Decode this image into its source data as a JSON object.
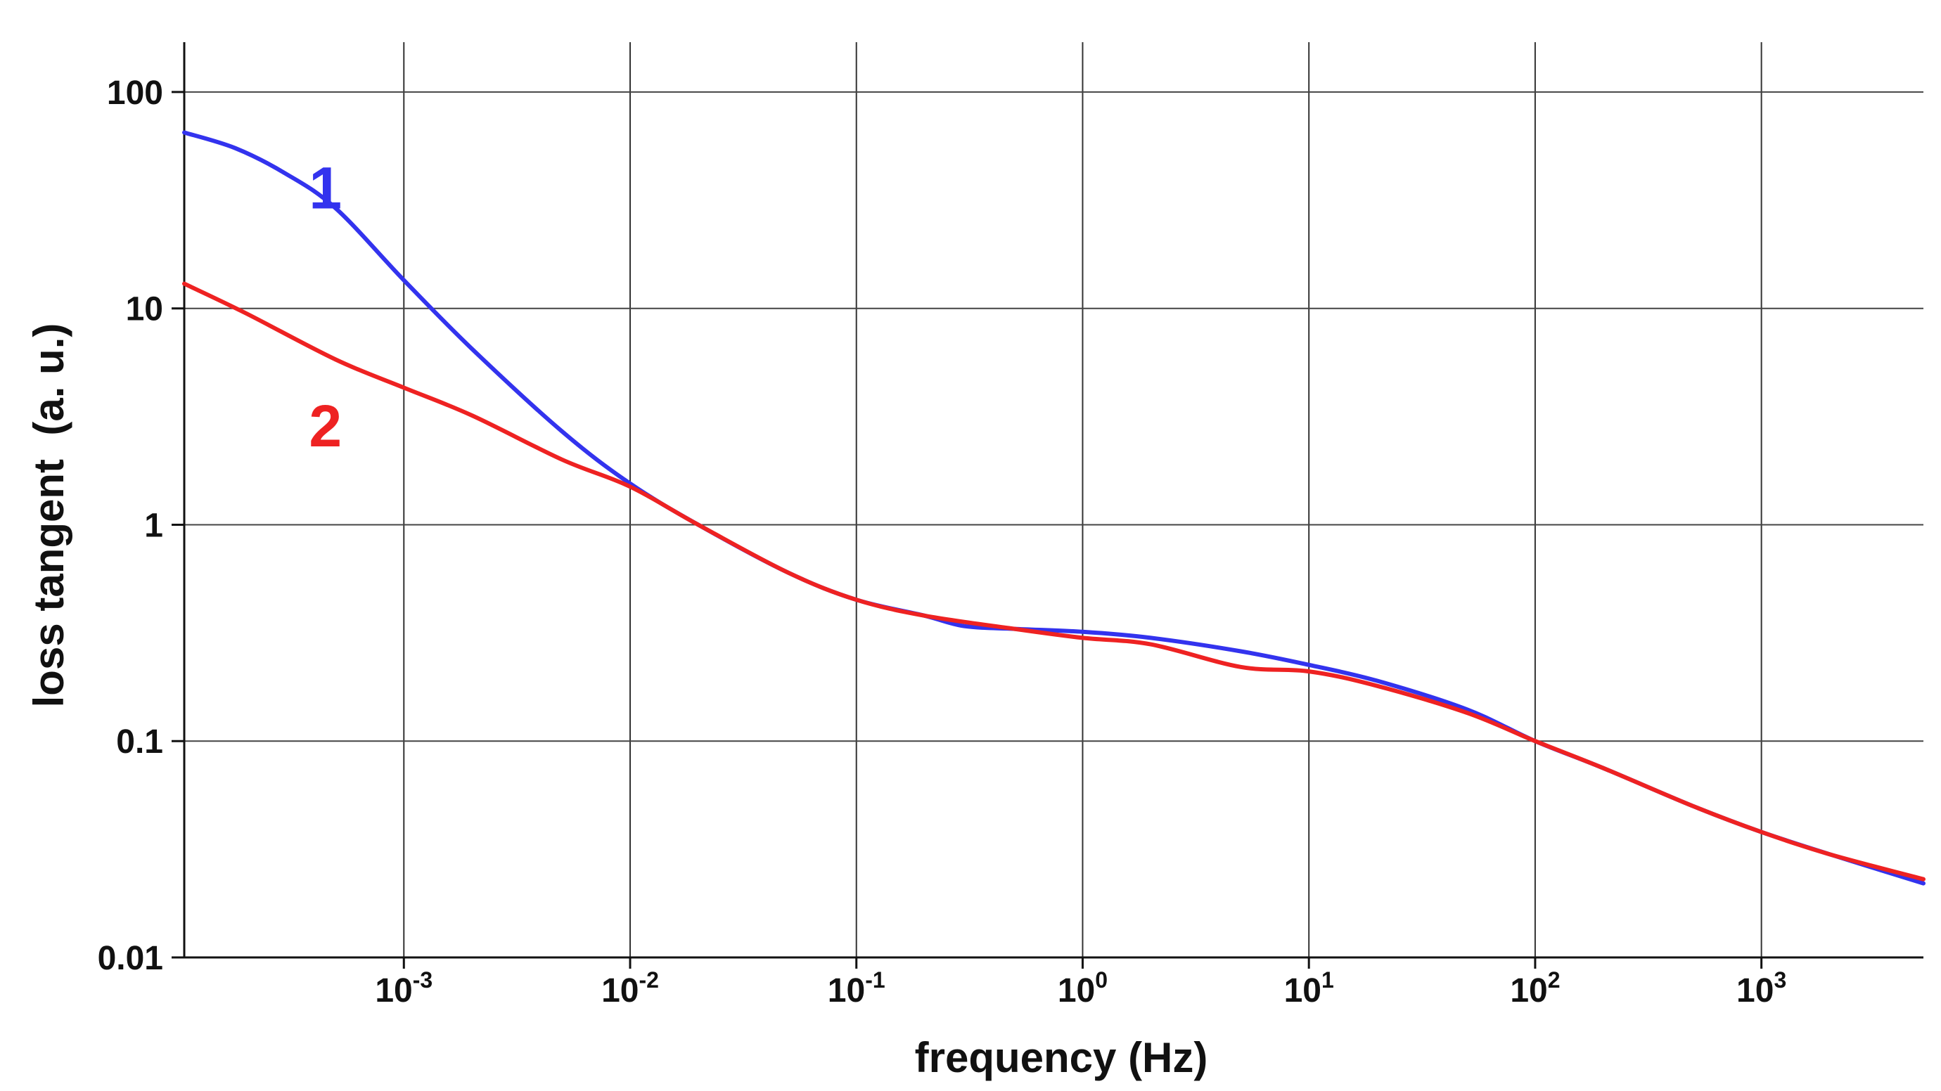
{
  "chart_data": {
    "type": "line",
    "title": "",
    "xlabel": "frequency (Hz)",
    "ylabel": "loss tangent  (a. u.)",
    "xscale": "log",
    "yscale": "log",
    "xlim": [
      0.000107,
      5200
    ],
    "ylim": [
      0.01,
      170
    ],
    "grid": true,
    "x_ticks": [
      {
        "value": 0.001,
        "base": "10",
        "exp": "-3"
      },
      {
        "value": 0.01,
        "base": "10",
        "exp": "-2"
      },
      {
        "value": 0.1,
        "base": "10",
        "exp": "-1"
      },
      {
        "value": 1,
        "base": "10",
        "exp": "0"
      },
      {
        "value": 10,
        "base": "10",
        "exp": "1"
      },
      {
        "value": 100,
        "base": "10",
        "exp": "2"
      },
      {
        "value": 1000,
        "base": "10",
        "exp": "3"
      }
    ],
    "y_ticks": [
      {
        "value": 0.01,
        "label": "0.01"
      },
      {
        "value": 0.1,
        "label": "0.1"
      },
      {
        "value": 1,
        "label": "1"
      },
      {
        "value": 10,
        "label": "10"
      },
      {
        "value": 100,
        "label": "100"
      }
    ],
    "series": [
      {
        "name": "1",
        "label": "1",
        "color": "#3333ee",
        "label_anchor": {
          "x": 0.00045,
          "y": 29
        },
        "x": [
          0.000107,
          0.00018,
          0.0003,
          0.0005,
          0.001,
          0.002,
          0.005,
          0.01,
          0.02,
          0.05,
          0.1,
          0.2,
          0.3,
          0.5,
          1,
          2,
          5,
          10,
          20,
          50,
          100,
          200,
          500,
          1000,
          2000,
          5200
        ],
        "y": [
          65,
          55,
          42,
          29,
          13.5,
          6.5,
          2.7,
          1.55,
          1.0,
          0.6,
          0.45,
          0.38,
          0.34,
          0.33,
          0.32,
          0.3,
          0.26,
          0.225,
          0.19,
          0.14,
          0.1,
          0.075,
          0.05,
          0.038,
          0.03,
          0.022
        ]
      },
      {
        "name": "2",
        "label": "2",
        "color": "#ee2222",
        "label_anchor": {
          "x": 0.00045,
          "y": 2.3
        },
        "x": [
          0.000107,
          0.0002,
          0.0005,
          0.001,
          0.002,
          0.005,
          0.01,
          0.02,
          0.05,
          0.1,
          0.2,
          0.5,
          1,
          2,
          5,
          10,
          20,
          50,
          100,
          200,
          500,
          1000,
          2000,
          5200
        ],
        "y": [
          13,
          9.5,
          5.8,
          4.3,
          3.2,
          2.0,
          1.5,
          1.0,
          0.6,
          0.45,
          0.38,
          0.33,
          0.3,
          0.28,
          0.22,
          0.21,
          0.18,
          0.135,
          0.1,
          0.075,
          0.05,
          0.038,
          0.03,
          0.023
        ]
      }
    ]
  }
}
